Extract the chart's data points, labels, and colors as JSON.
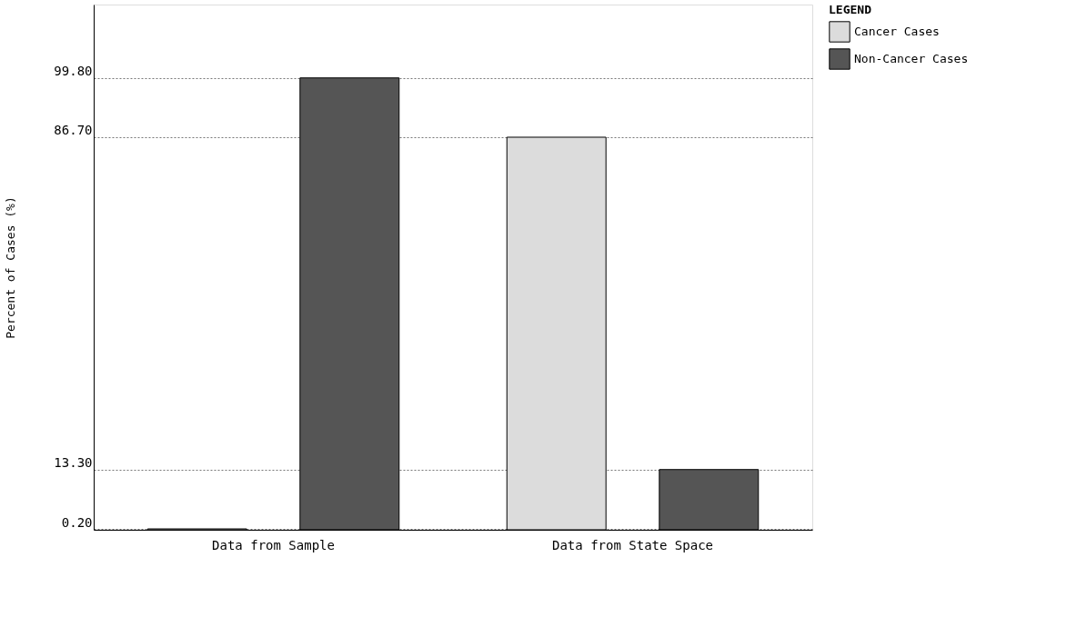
{
  "chart_data": {
    "type": "bar",
    "ylabel": "Percent of Cases (%)",
    "legend_title": "LEGEND",
    "categories": [
      "Data from Sample",
      "Data from State Space"
    ],
    "series": [
      {
        "name": "Cancer Cases",
        "color": "#dcdcdc",
        "values": [
          0.2,
          86.7
        ]
      },
      {
        "name": "Non-Cancer Cases",
        "color": "#555555",
        "values": [
          99.8,
          13.3
        ]
      }
    ],
    "ylim": [
      0,
      116
    ],
    "yticks": [
      {
        "value": 0.2,
        "label": "0.20"
      },
      {
        "value": 13.3,
        "label": "13.30"
      },
      {
        "value": 86.7,
        "label": "86.70"
      },
      {
        "value": 99.8,
        "label": "99.80"
      }
    ],
    "grid": "y",
    "line_style": "dotted",
    "legend": "top right"
  }
}
